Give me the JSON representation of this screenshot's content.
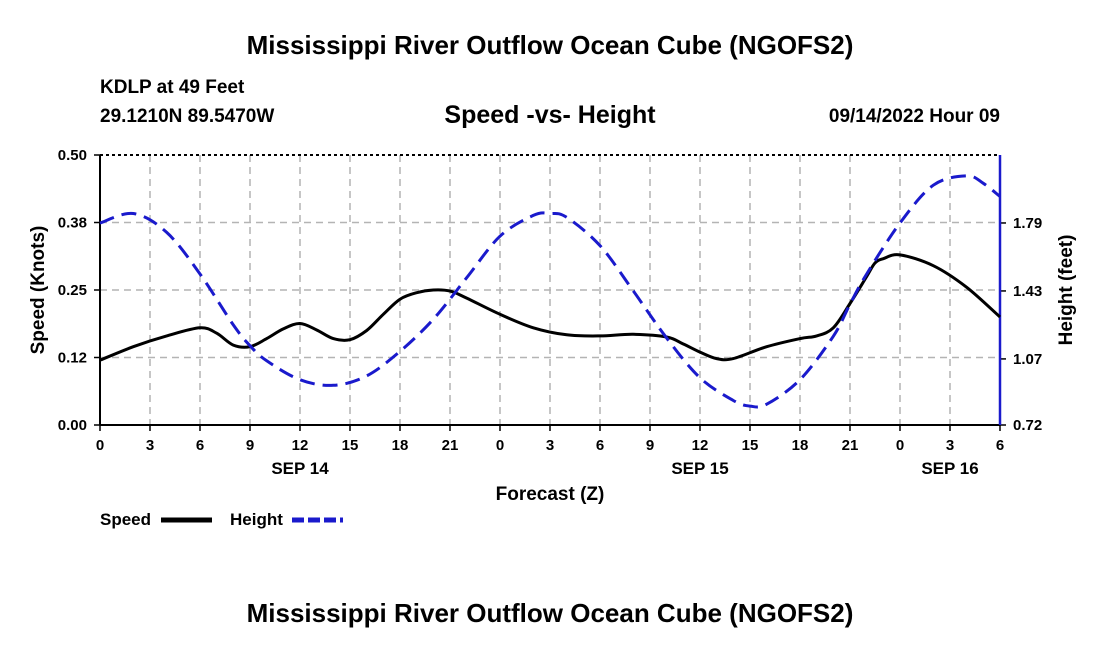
{
  "header": {
    "title": "Mississippi River Outflow Ocean Cube (NGOFS2)",
    "station": "KDLP at 49 Feet",
    "coordinates": "29.1210N  89.5470W",
    "subtitle": "Speed -vs- Height",
    "datetime": "09/14/2022 Hour 09"
  },
  "footer": {
    "title": "Mississippi River Outflow Ocean Cube (NGOFS2)"
  },
  "chart_data": {
    "type": "line",
    "xlabel": "Forecast (Z)",
    "ylabel_left": "Speed (Knots)",
    "ylabel_right": "Height (feet)",
    "x_hours_range": [
      0,
      54
    ],
    "x_tick_step_hours": 3,
    "x_tick_labels": [
      "0",
      "3",
      "6",
      "9",
      "12",
      "15",
      "18",
      "21",
      "0",
      "3",
      "6",
      "9",
      "12",
      "15",
      "18",
      "21",
      "0",
      "3",
      "6"
    ],
    "date_labels": [
      {
        "label": "SEP 14",
        "hour": 12
      },
      {
        "label": "SEP 15",
        "hour": 36
      },
      {
        "label": "SEP 16",
        "hour": 51
      }
    ],
    "left_axis": {
      "ylim": [
        0,
        0.5
      ],
      "ticks": [
        0.0,
        0.125,
        0.25,
        0.375,
        0.5
      ],
      "tick_labels": [
        "0.00",
        "0.12",
        "0.25",
        "0.38",
        "0.50"
      ]
    },
    "right_axis": {
      "ylim": [
        0.72,
        2.15
      ],
      "ticks": [
        0.72,
        1.07,
        1.43,
        1.79
      ],
      "tick_labels": [
        "0.72",
        "1.07",
        "1.43",
        "1.79"
      ]
    },
    "grid": true,
    "series": [
      {
        "name": "Speed",
        "axis": "left",
        "color": "#000000",
        "dash": "solid",
        "x": [
          0,
          2,
          4,
          6,
          7,
          8,
          9,
          10,
          11,
          12,
          13,
          14,
          15,
          16,
          17,
          18,
          19,
          20,
          21,
          22,
          24,
          26,
          28,
          30,
          32,
          34,
          35,
          36,
          37,
          38,
          40,
          42,
          43,
          44,
          45,
          46,
          46.5,
          47,
          48,
          50,
          52,
          54
        ],
        "values": [
          0.12,
          0.145,
          0.165,
          0.18,
          0.17,
          0.148,
          0.145,
          0.16,
          0.178,
          0.188,
          0.176,
          0.16,
          0.158,
          0.175,
          0.205,
          0.233,
          0.245,
          0.25,
          0.248,
          0.235,
          0.205,
          0.18,
          0.167,
          0.165,
          0.168,
          0.163,
          0.15,
          0.135,
          0.123,
          0.123,
          0.145,
          0.16,
          0.165,
          0.18,
          0.225,
          0.275,
          0.3,
          0.308,
          0.315,
          0.295,
          0.255,
          0.2
        ]
      },
      {
        "name": "Height",
        "axis": "right",
        "color": "#1a1acc",
        "dash": "dashed",
        "x": [
          0,
          2,
          4,
          6,
          8,
          9,
          10,
          12,
          14,
          16,
          18,
          20,
          22,
          24,
          26,
          27,
          28,
          30,
          32,
          34,
          36,
          38,
          39,
          40,
          42,
          44,
          45,
          46,
          48,
          50,
          52,
          53,
          54
        ],
        "values": [
          1.79,
          1.84,
          1.74,
          1.52,
          1.25,
          1.14,
          1.06,
          0.96,
          0.93,
          0.98,
          1.11,
          1.28,
          1.5,
          1.72,
          1.83,
          1.84,
          1.82,
          1.67,
          1.43,
          1.18,
          0.97,
          0.85,
          0.82,
          0.83,
          0.96,
          1.19,
          1.36,
          1.52,
          1.79,
          1.99,
          2.04,
          2.0,
          1.93
        ]
      }
    ]
  }
}
